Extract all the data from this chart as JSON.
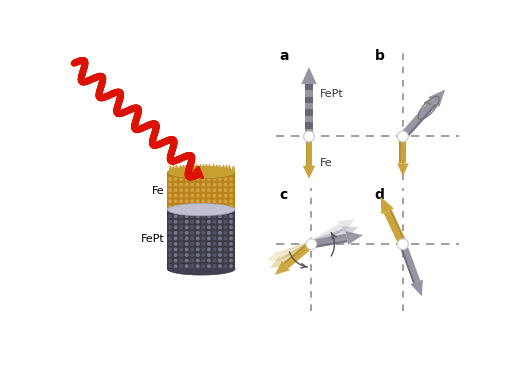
{
  "bg_color": "#ffffff",
  "label_a": "a",
  "label_b": "b",
  "label_c": "c",
  "label_d": "d",
  "label_Fe": "Fe",
  "label_FePt": "FePt",
  "label_Fe_cyl": "Fe",
  "label_FePt_cyl": "FePt",
  "gold": "#C8A030",
  "gold_dark": "#A07820",
  "gold_light": "#E0C060",
  "gray_dark": "#505060",
  "gray_mid": "#707080",
  "gray_light": "#A0A0B0",
  "gray_arrow": "#686878",
  "laser_red": "#DD1100",
  "dash_color": "#909090",
  "white": "#ffffff",
  "label_fontsize": 10,
  "text_fontsize": 8,
  "wave_lw": 5.0,
  "n_waves": 7,
  "wave_amplitude": 11
}
